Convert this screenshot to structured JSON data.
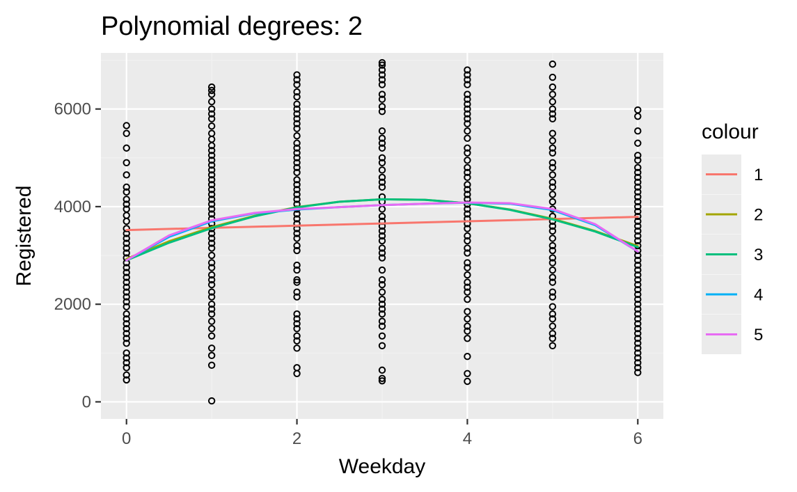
{
  "chart_data": {
    "type": "scatter",
    "title": "Polynomial degrees: 2",
    "xlabel": "Weekday",
    "ylabel": "Registered",
    "xlim": [
      -0.3,
      6.3
    ],
    "ylim": [
      -350,
      7150
    ],
    "x_ticks": [
      0,
      2,
      4,
      6
    ],
    "y_ticks": [
      0,
      2000,
      4000,
      6000
    ],
    "grid": true,
    "legend": {
      "title": "colour",
      "position": "right"
    },
    "points": [
      {
        "x": 0,
        "y": [
          5660,
          5500,
          5200,
          4900,
          4650,
          4400,
          4300,
          4150,
          4050,
          3950,
          3820,
          3700,
          3550,
          3450,
          3350,
          3250,
          3150,
          3050,
          2950,
          2850,
          2750,
          2650,
          2550,
          2450,
          2350,
          2250,
          2150,
          2050,
          1950,
          1800,
          1700,
          1600,
          1500,
          1400,
          1300,
          1200,
          1000,
          900,
          800,
          700,
          550,
          450
        ]
      },
      {
        "x": 1,
        "y": [
          6450,
          6380,
          6300,
          6150,
          6000,
          5900,
          5800,
          5650,
          5500,
          5380,
          5250,
          5150,
          5050,
          4950,
          4850,
          4750,
          4650,
          4550,
          4450,
          4350,
          4250,
          4150,
          4050,
          3950,
          3850,
          3750,
          3650,
          3550,
          3450,
          3350,
          3250,
          3150,
          3000,
          2850,
          2750,
          2600,
          2500,
          2400,
          2250,
          2150,
          2000,
          1900,
          1800,
          1650,
          1500,
          1350,
          1100,
          950,
          750,
          20
        ]
      },
      {
        "x": 2,
        "y": [
          6700,
          6600,
          6500,
          6350,
          6250,
          6100,
          6000,
          5900,
          5800,
          5700,
          5600,
          5450,
          5300,
          5200,
          5100,
          5000,
          4900,
          4800,
          4700,
          4550,
          4450,
          4350,
          4250,
          4150,
          4050,
          3950,
          3850,
          3750,
          3650,
          3550,
          3450,
          3350,
          3200,
          3100,
          2800,
          2700,
          2500,
          2450,
          2250,
          2150,
          1800,
          1700,
          1600,
          1500,
          1350,
          1250,
          1100,
          700,
          580
        ]
      },
      {
        "x": 3,
        "y": [
          6950,
          6900,
          6800,
          6700,
          6600,
          6500,
          6300,
          6200,
          6050,
          5950,
          5550,
          5400,
          5300,
          5200,
          5000,
          4900,
          4750,
          4600,
          4500,
          4400,
          4200,
          4100,
          3950,
          3800,
          3700,
          3600,
          3500,
          3400,
          3300,
          3150,
          3050,
          2950,
          2700,
          2500,
          2400,
          2250,
          2100,
          2000,
          1900,
          1800,
          1650,
          1550,
          1350,
          1150,
          650,
          480,
          430
        ]
      },
      {
        "x": 4,
        "y": [
          6800,
          6700,
          6600,
          6500,
          6300,
          6200,
          6100,
          6000,
          5900,
          5800,
          5700,
          5550,
          5400,
          5200,
          5100,
          4950,
          4800,
          4700,
          4600,
          4450,
          4350,
          4250,
          4150,
          4050,
          3950,
          3850,
          3750,
          3650,
          3550,
          3400,
          3300,
          3150,
          3050,
          2850,
          2750,
          2600,
          2450,
          2350,
          2250,
          2100,
          1850,
          1700,
          1550,
          1450,
          1300,
          930,
          580,
          420
        ]
      },
      {
        "x": 5,
        "y": [
          6920,
          6650,
          6450,
          6300,
          6150,
          6000,
          5900,
          5800,
          5500,
          5350,
          5200,
          5100,
          4900,
          4800,
          4650,
          4500,
          4400,
          4250,
          4100,
          3950,
          3800,
          3700,
          3600,
          3500,
          3350,
          3200,
          3100,
          2950,
          2850,
          2700,
          2550,
          2450,
          2250,
          2150,
          1950,
          1800,
          1700,
          1550,
          1400,
          1300,
          1150
        ]
      },
      {
        "x": 6,
        "y": [
          5980,
          5850,
          5550,
          5300,
          5050,
          4950,
          4800,
          4700,
          4600,
          4500,
          4400,
          4300,
          4200,
          4100,
          4000,
          3900,
          3800,
          3700,
          3600,
          3500,
          3400,
          3300,
          3200,
          3100,
          3000,
          2900,
          2800,
          2700,
          2600,
          2500,
          2400,
          2300,
          2200,
          2100,
          2000,
          1900,
          1800,
          1700,
          1600,
          1500,
          1400,
          1300,
          1200,
          1100,
          1000,
          900,
          800,
          700,
          600
        ]
      }
    ],
    "series": [
      {
        "name": "1",
        "color": "#F8766D",
        "x": [
          0,
          1,
          2,
          3,
          4,
          5,
          6
        ],
        "y": [
          3520,
          3565,
          3610,
          3655,
          3700,
          3745,
          3790
        ]
      },
      {
        "name": "2",
        "color": "#A3A500",
        "x": [
          0,
          0.5,
          1,
          1.5,
          2,
          2.5,
          3,
          3.5,
          4,
          4.5,
          5,
          5.5,
          6
        ],
        "y": [
          2930,
          3290,
          3580,
          3810,
          3990,
          4100,
          4150,
          4140,
          4070,
          3940,
          3750,
          3500,
          3190
        ]
      },
      {
        "name": "3",
        "color": "#00BF7D",
        "x": [
          0,
          0.5,
          1,
          1.5,
          2,
          2.5,
          3,
          3.5,
          4,
          4.5,
          5,
          5.5,
          6
        ],
        "y": [
          2900,
          3260,
          3560,
          3800,
          3985,
          4100,
          4150,
          4140,
          4070,
          3935,
          3740,
          3490,
          3170
        ]
      },
      {
        "name": "4",
        "color": "#00B0F6",
        "x": [
          0,
          0.5,
          1,
          1.5,
          2,
          2.5,
          3,
          3.5,
          4,
          4.5,
          5,
          5.5,
          6
        ],
        "y": [
          2900,
          3380,
          3700,
          3860,
          3940,
          3990,
          4030,
          4060,
          4080,
          4060,
          3930,
          3620,
          3080
        ]
      },
      {
        "name": "5",
        "color": "#E76BF3",
        "x": [
          0,
          0.5,
          1,
          1.5,
          2,
          2.5,
          3,
          3.5,
          4,
          4.5,
          5,
          5.5,
          6
        ],
        "y": [
          2900,
          3410,
          3720,
          3870,
          3950,
          3990,
          4030,
          4060,
          4085,
          4070,
          3950,
          3640,
          3080
        ]
      }
    ]
  }
}
